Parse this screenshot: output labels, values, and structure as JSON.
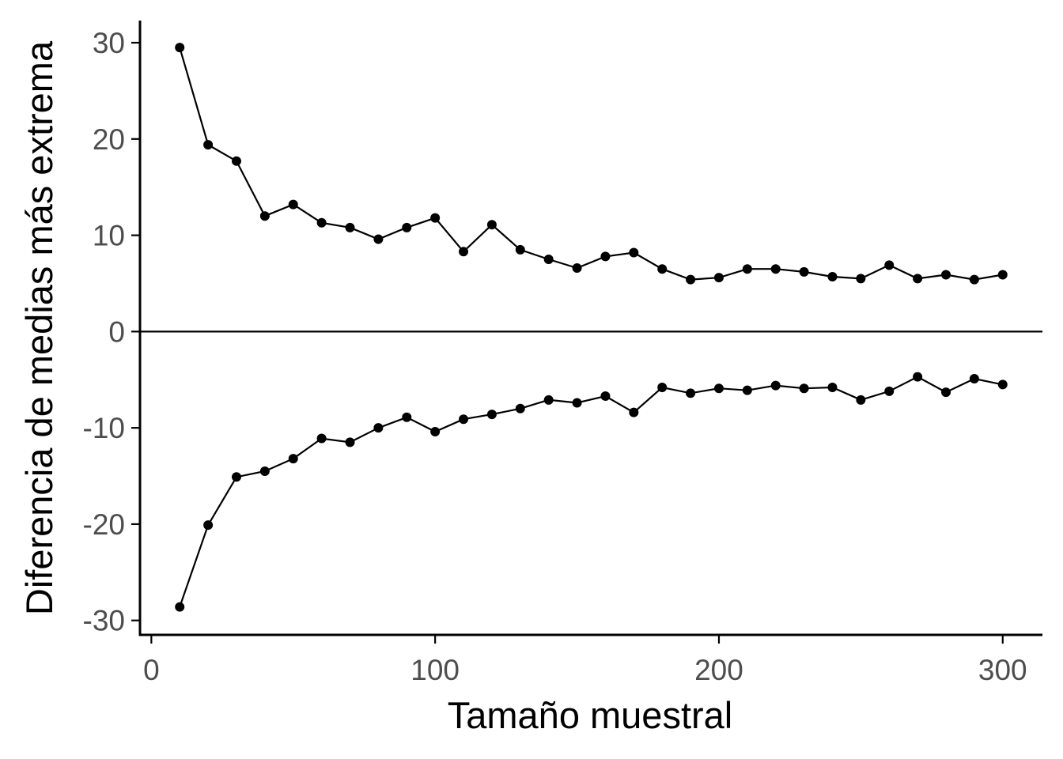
{
  "chart_data": {
    "type": "line",
    "xlabel": "Tamaño muestral",
    "ylabel": "Diferencia de medias más extrema",
    "xlim": [
      -4,
      314
    ],
    "ylim": [
      -31.5,
      32.3
    ],
    "x_ticks": [
      0,
      100,
      200,
      300
    ],
    "y_ticks": [
      -30,
      -20,
      -10,
      0,
      10,
      20,
      30
    ],
    "x_tick_labels": [
      "0",
      "100",
      "200",
      "300"
    ],
    "y_tick_labels": [
      "-30",
      "-20",
      "-10",
      "0",
      "10",
      "20",
      "30"
    ],
    "reference_line_y": 0,
    "grid": false,
    "color": "#000000",
    "x": [
      10,
      20,
      30,
      40,
      50,
      60,
      70,
      80,
      90,
      100,
      110,
      120,
      130,
      140,
      150,
      160,
      170,
      180,
      190,
      200,
      210,
      220,
      230,
      240,
      250,
      260,
      270,
      280,
      290,
      300
    ],
    "series": [
      {
        "values": [
          29.5,
          19.4,
          17.7,
          12.0,
          13.2,
          11.3,
          10.8,
          9.6,
          10.8,
          11.8,
          8.3,
          11.1,
          8.5,
          7.5,
          6.6,
          7.8,
          8.2,
          6.5,
          5.4,
          5.6,
          6.5,
          6.5,
          6.2,
          5.7,
          5.5,
          6.9,
          5.5,
          5.9,
          5.4,
          5.9
        ]
      },
      {
        "values": [
          -28.6,
          -20.1,
          -15.1,
          -14.5,
          -13.2,
          -11.1,
          -11.5,
          -10.0,
          -8.9,
          -10.4,
          -9.1,
          -8.6,
          -8.0,
          -7.1,
          -7.4,
          -6.7,
          -8.4,
          -5.8,
          -6.4,
          -5.9,
          -6.1,
          -5.6,
          -5.9,
          -5.8,
          -7.1,
          -6.2,
          -4.7,
          -6.3,
          -4.9,
          -5.5
        ]
      }
    ]
  }
}
